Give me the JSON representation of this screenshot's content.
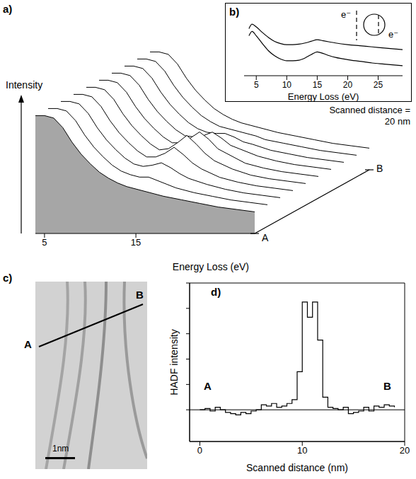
{
  "chart_data": [
    {
      "panel": "a)",
      "type": "waterfall",
      "color": "#000000",
      "x": [
        4,
        5,
        6,
        7,
        8,
        9,
        10,
        11,
        12,
        13,
        14,
        15,
        16,
        17,
        18,
        20,
        22,
        24,
        26,
        28
      ],
      "xlim": [
        4,
        28
      ],
      "xticks": [
        5,
        15
      ],
      "xlabel": "Energy Loss (eV)",
      "ylabel": "Intensity",
      "ylim": [
        0,
        100
      ],
      "tick_labels": "x",
      "depth_label": "Scanned distance = 20 nm",
      "depth_ends": [
        "A",
        "B"
      ],
      "series": [
        {
          "values": [
            98,
            98,
            96,
            88,
            76,
            66,
            58,
            51,
            46,
            42,
            39,
            37,
            35,
            33,
            31,
            28,
            25,
            22,
            20,
            18
          ]
        },
        {
          "values": [
            98,
            98,
            96,
            88,
            76,
            66,
            58,
            51,
            46,
            43,
            41,
            41,
            38,
            35,
            32,
            28,
            25,
            22,
            20,
            18
          ]
        },
        {
          "values": [
            98,
            98,
            96,
            88,
            76,
            66,
            58,
            51,
            46,
            44,
            45,
            47,
            43,
            38,
            34,
            29,
            25,
            22,
            20,
            18
          ]
        },
        {
          "values": [
            98,
            98,
            96,
            88,
            76,
            66,
            58,
            51,
            46,
            46,
            49,
            54,
            48,
            41,
            36,
            29,
            25,
            22,
            20,
            18
          ]
        },
        {
          "values": [
            98,
            98,
            96,
            88,
            76,
            66,
            58,
            51,
            46,
            47,
            52,
            58,
            51,
            43,
            37,
            30,
            25,
            22,
            20,
            18
          ]
        },
        {
          "values": [
            98,
            98,
            96,
            88,
            76,
            66,
            58,
            51,
            46,
            46,
            50,
            55,
            49,
            41,
            37,
            29,
            25,
            22,
            20,
            18
          ]
        },
        {
          "values": [
            98,
            98,
            96,
            88,
            76,
            66,
            58,
            51,
            46,
            45,
            46,
            49,
            44,
            38,
            35,
            29,
            25,
            22,
            20,
            18
          ]
        },
        {
          "values": [
            98,
            98,
            96,
            88,
            76,
            66,
            58,
            51,
            46,
            43,
            42,
            42,
            39,
            35,
            33,
            28,
            25,
            22,
            20,
            18
          ]
        },
        {
          "values": [
            98,
            98,
            96,
            88,
            76,
            66,
            58,
            51,
            46,
            42,
            40,
            38,
            36,
            34,
            31,
            28,
            25,
            22,
            20,
            18
          ]
        },
        {
          "values": [
            98,
            98,
            96,
            88,
            76,
            66,
            58,
            51,
            46,
            42,
            39,
            37,
            35,
            33,
            31,
            28,
            25,
            22,
            20,
            18
          ]
        }
      ]
    },
    {
      "panel": "b)",
      "type": "line",
      "color": "#000000",
      "x": [
        3.8,
        4.3,
        5,
        6,
        7,
        8,
        9,
        10,
        11,
        12,
        13,
        14,
        15,
        16,
        17,
        18,
        20,
        22,
        24,
        26,
        28,
        29
      ],
      "xlim": [
        3,
        29
      ],
      "xticks": [
        5,
        10,
        15,
        20,
        25
      ],
      "xlabel": "Energy Loss (eV)",
      "ylim": [
        0,
        120
      ],
      "tick_labels": "x",
      "inset_labels": [
        "e⁻",
        "e⁻"
      ],
      "series": [
        {
          "values": [
            85,
            93,
            88,
            78,
            69,
            62,
            58,
            56,
            56,
            57,
            59,
            62,
            65,
            63,
            61,
            59,
            56,
            54,
            52,
            50,
            48,
            47
          ]
        },
        {
          "values": [
            72,
            80,
            72,
            58,
            45,
            36,
            30,
            27,
            27,
            28,
            32,
            38,
            43,
            40,
            36,
            33,
            29,
            26,
            23,
            21,
            19,
            18
          ]
        }
      ]
    },
    {
      "panel": "d)",
      "type": "line",
      "line_style": "step",
      "color": "#000000",
      "x": [
        0,
        0.5,
        1,
        1.5,
        2,
        2.5,
        3,
        3.5,
        4,
        4.5,
        5,
        5.5,
        6,
        6.5,
        7,
        7.5,
        8,
        8.5,
        9,
        9.5,
        10,
        10.5,
        11,
        11.5,
        12,
        12.5,
        13,
        13.5,
        14,
        14.5,
        15,
        15.5,
        16,
        16.5,
        17,
        17.5,
        18,
        18.5,
        19
      ],
      "values": [
        0,
        0.01,
        -0.01,
        0.02,
        0,
        -0.02,
        -0.03,
        -0.04,
        -0.02,
        -0.03,
        -0.01,
        0,
        0.04,
        0.03,
        0.05,
        0.02,
        0.03,
        0.05,
        0.08,
        0.3,
        0.85,
        0.73,
        0.85,
        0.55,
        0.1,
        0.02,
        0.01,
        0,
        0.02,
        -0.03,
        -0.02,
        -0.01,
        0.02,
        -0.01,
        0.03,
        0.02,
        0.04,
        0.03,
        0.02
      ],
      "xlim": [
        -1,
        20
      ],
      "xticks": [
        0,
        10,
        20
      ],
      "ylim": [
        -0.25,
        1.0
      ],
      "yticks": [
        0,
        0.2,
        0.4,
        0.6,
        0.8,
        1.0
      ],
      "tick_labels": "x",
      "xlabel": "Scanned distance (nm)",
      "ylabel": "HADF intensity",
      "annotations": [
        "A",
        "B"
      ]
    }
  ],
  "image": {
    "panel": "c)",
    "line_ends": [
      "A",
      "B"
    ],
    "scale_bar": "1nm"
  }
}
